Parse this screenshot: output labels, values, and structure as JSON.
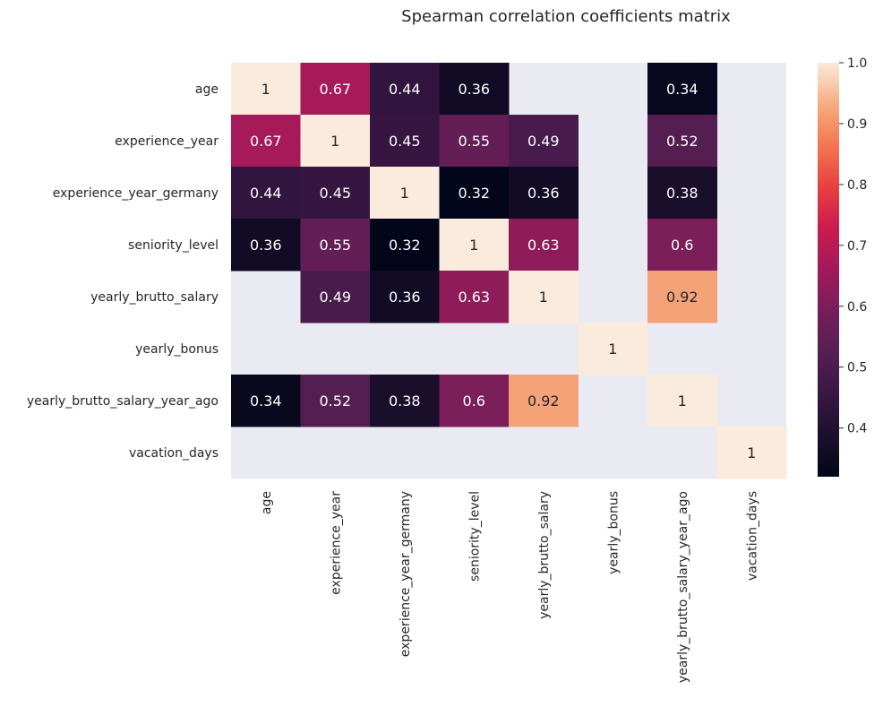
{
  "chart_data": {
    "type": "heatmap",
    "title": "Spearman correlation coefficients matrix",
    "xlabel": "",
    "ylabel": "",
    "rows": [
      "age",
      "experience_year",
      "experience_year_germany",
      "seniority_level",
      "yearly_brutto_salary",
      "yearly_bonus",
      "yearly_brutto_salary_year_ago",
      "vacation_days"
    ],
    "columns": [
      "age",
      "experience_year",
      "experience_year_germany",
      "seniority_level",
      "yearly_brutto_salary",
      "yearly_bonus",
      "yearly_brutto_salary_year_ago",
      "vacation_days"
    ],
    "values": [
      [
        1,
        0.67,
        0.44,
        0.36,
        null,
        null,
        0.34,
        null
      ],
      [
        0.67,
        1,
        0.45,
        0.55,
        0.49,
        null,
        0.52,
        null
      ],
      [
        0.44,
        0.45,
        1,
        0.32,
        0.36,
        null,
        0.38,
        null
      ],
      [
        0.36,
        0.55,
        0.32,
        1,
        0.63,
        null,
        0.6,
        null
      ],
      [
        null,
        0.49,
        0.36,
        0.63,
        1,
        null,
        0.92,
        null
      ],
      [
        null,
        null,
        null,
        null,
        null,
        1,
        null,
        null
      ],
      [
        0.34,
        0.52,
        0.38,
        0.6,
        0.92,
        null,
        1,
        null
      ],
      [
        null,
        null,
        null,
        null,
        null,
        null,
        null,
        1
      ]
    ],
    "colorbar": {
      "colormap": "rocket",
      "vmin": 0.32,
      "vmax": 1.0,
      "ticks": [
        0.4,
        0.5,
        0.6,
        0.7,
        0.8,
        0.9,
        1.0
      ],
      "tick_labels": [
        "0.4",
        "0.5",
        "0.6",
        "0.7",
        "0.8",
        "0.9",
        "1.0"
      ]
    },
    "colors": {
      "missing_cell": "#eaeaf2",
      "annotation_dark_bg_text": "#ffffff",
      "annotation_light_bg_text": "#262626",
      "label_text": "#262626"
    }
  }
}
